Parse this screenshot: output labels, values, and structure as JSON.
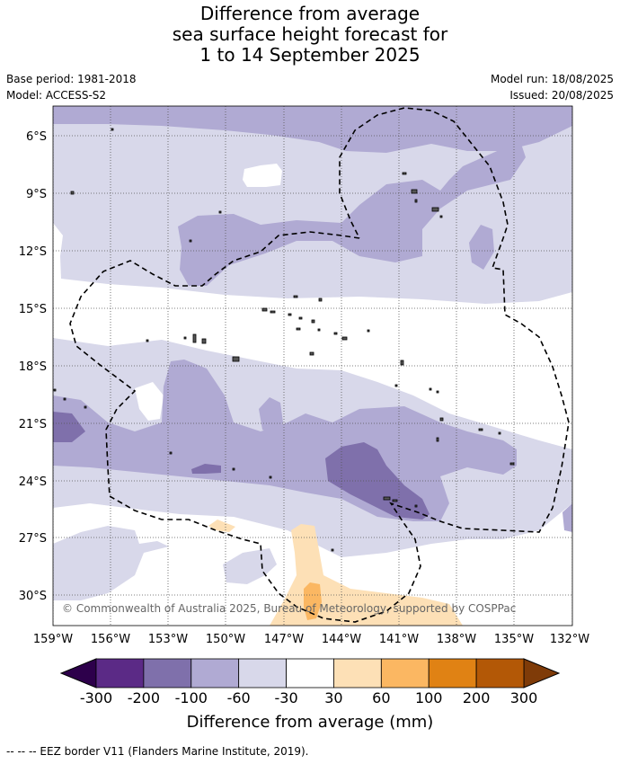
{
  "title": {
    "line1": "Difference from average",
    "line2": "sea surface height forecast for",
    "line3": "1 to 14 September 2025"
  },
  "meta": {
    "base_period": "Base period: 1981-2018",
    "model": "Model: ACCESS-S2",
    "model_run": "Model run: 18/08/2025",
    "issued": "Issued: 20/08/2025"
  },
  "map": {
    "lat_labels": [
      "6°S",
      "9°S",
      "12°S",
      "15°S",
      "18°S",
      "21°S",
      "24°S",
      "27°S",
      "30°S"
    ],
    "lon_labels": [
      "159°W",
      "156°W",
      "153°W",
      "150°W",
      "147°W",
      "144°W",
      "141°W",
      "138°W",
      "135°W",
      "132°W"
    ],
    "copyright": "© Commonwealth of Australia 2025, Bureau of Meteorology, supported by COSPPac"
  },
  "legend": {
    "tick_labels": [
      "-300",
      "-200",
      "-100",
      "-60",
      "-30",
      "30",
      "60",
      "100",
      "200",
      "300"
    ],
    "colors": [
      "#5b2a86",
      "#7f70ab",
      "#b0aad3",
      "#d8d8ea",
      "#ffffff",
      "#fde0b6",
      "#fbb762",
      "#e08214",
      "#b35806"
    ],
    "under_color": "#2d004b",
    "over_color": "#7f3b08",
    "title": "Difference from average (mm)"
  },
  "footer": {
    "eez_note": "--  --  -- EEZ border V11 (Flanders Marine Institute, 2019)."
  }
}
